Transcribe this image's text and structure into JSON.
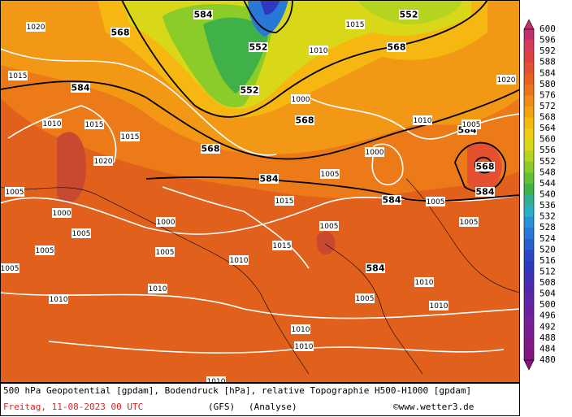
{
  "map": {
    "contour_labels": [
      "584",
      "568",
      "552",
      "552",
      "568",
      "584",
      "552",
      "568",
      "568",
      "584",
      "584",
      "584",
      "584",
      "568",
      "584",
      "1020",
      "1015",
      "1010",
      "1015",
      "1020",
      "1005",
      "1000",
      "1005",
      "1005",
      "1005",
      "1010",
      "1010",
      "1010",
      "1010",
      "1010",
      "1005",
      "1010",
      "1005",
      "1005",
      "1000",
      "1005",
      "1000",
      "1010",
      "1015",
      "1020",
      "1010",
      "1005",
      "1015",
      "1000",
      "1005",
      "1015",
      "1010",
      "1005",
      "1010",
      "1015"
    ],
    "colorbar": {
      "levels": [
        600,
        596,
        592,
        588,
        584,
        580,
        576,
        572,
        568,
        564,
        560,
        556,
        552,
        548,
        544,
        540,
        536,
        532,
        528,
        524,
        520,
        516,
        512,
        508,
        504,
        500,
        496,
        492,
        488,
        484,
        480
      ],
      "colors": [
        "#c2306e",
        "#d63c5a",
        "#e04040",
        "#e45030",
        "#e86020",
        "#ec7418",
        "#f08a14",
        "#f4a010",
        "#f6b810",
        "#f0cc10",
        "#d8d818",
        "#b4d420",
        "#8ccc28",
        "#64c030",
        "#40b048",
        "#30b090",
        "#28b0c8",
        "#2894d8",
        "#2878d8",
        "#2860d0",
        "#2848c8",
        "#3038c0",
        "#4030b8",
        "#5028b0",
        "#6024a8",
        "#6c20a0",
        "#782098",
        "#7c1c90",
        "#801888",
        "#841480"
      ]
    },
    "caption": {
      "line1": "500 hPa Geopotential [gpdam], Bodendruck [hPa], relative Topographie H500-H1000 [gpdam]",
      "date": "Freitag, 11-08-2023  00 UTC",
      "model": "(GFS)",
      "run": "(Analyse)",
      "source": "©www.wetter3.de"
    }
  }
}
